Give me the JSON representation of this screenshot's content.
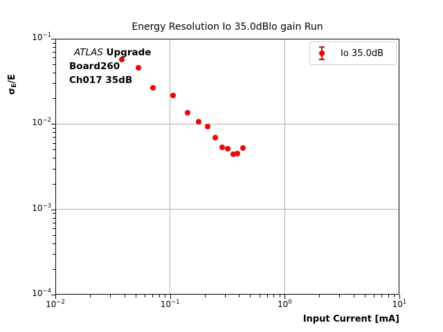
{
  "title": "Energy Resolution Io 35.0dBlo gain Run",
  "ylabel_parts": {
    "sigma": "σ",
    "sub": "E",
    "rest": "/E"
  },
  "annotation": {
    "experiment": "ATLAS",
    "program": "Upgrade",
    "board": "Board260",
    "channel": "Ch017 35dB"
  },
  "legend": {
    "label": "Io 35.0dB"
  },
  "colors": {
    "marker": "#ff0000",
    "grid": "#b0b0b0",
    "axis": "#000000",
    "legend_border": "#cccccc",
    "background": "#ffffff"
  },
  "chart_data": {
    "type": "scatter",
    "title": "Energy Resolution Io 35.0dBlo gain Run",
    "xlabel": "Input Current [mA]",
    "ylabel": "σE/E",
    "x_scale": "log",
    "y_scale": "log",
    "xlim": [
      0.01,
      10
    ],
    "ylim": [
      0.0001,
      0.1
    ],
    "grid": true,
    "legend_position": "upper right",
    "series": [
      {
        "name": "Io 35.0dB",
        "color": "#ff0000",
        "marker": "circle-with-errorbar",
        "x": [
          0.038,
          0.053,
          0.071,
          0.106,
          0.142,
          0.178,
          0.213,
          0.248,
          0.285,
          0.318,
          0.356,
          0.387,
          0.432
        ],
        "y": [
          0.057,
          0.046,
          0.0266,
          0.0216,
          0.0136,
          0.0106,
          0.0093,
          0.0069,
          0.0053,
          0.0051,
          0.0044,
          0.0045,
          0.0052
        ]
      }
    ],
    "x_ticks": {
      "values": [
        0.01,
        0.1,
        1,
        10
      ],
      "labels": [
        {
          "base": "10",
          "exp": "−2"
        },
        {
          "base": "10",
          "exp": "−1"
        },
        {
          "base": "10",
          "exp": "0"
        },
        {
          "base": "10",
          "exp": "1"
        }
      ]
    },
    "y_ticks": {
      "values": [
        0.0001,
        0.001,
        0.01,
        0.1
      ],
      "labels": [
        {
          "base": "10",
          "exp": "−4"
        },
        {
          "base": "10",
          "exp": "−3"
        },
        {
          "base": "10",
          "exp": "−2"
        },
        {
          "base": "10",
          "exp": "−1"
        }
      ]
    }
  }
}
